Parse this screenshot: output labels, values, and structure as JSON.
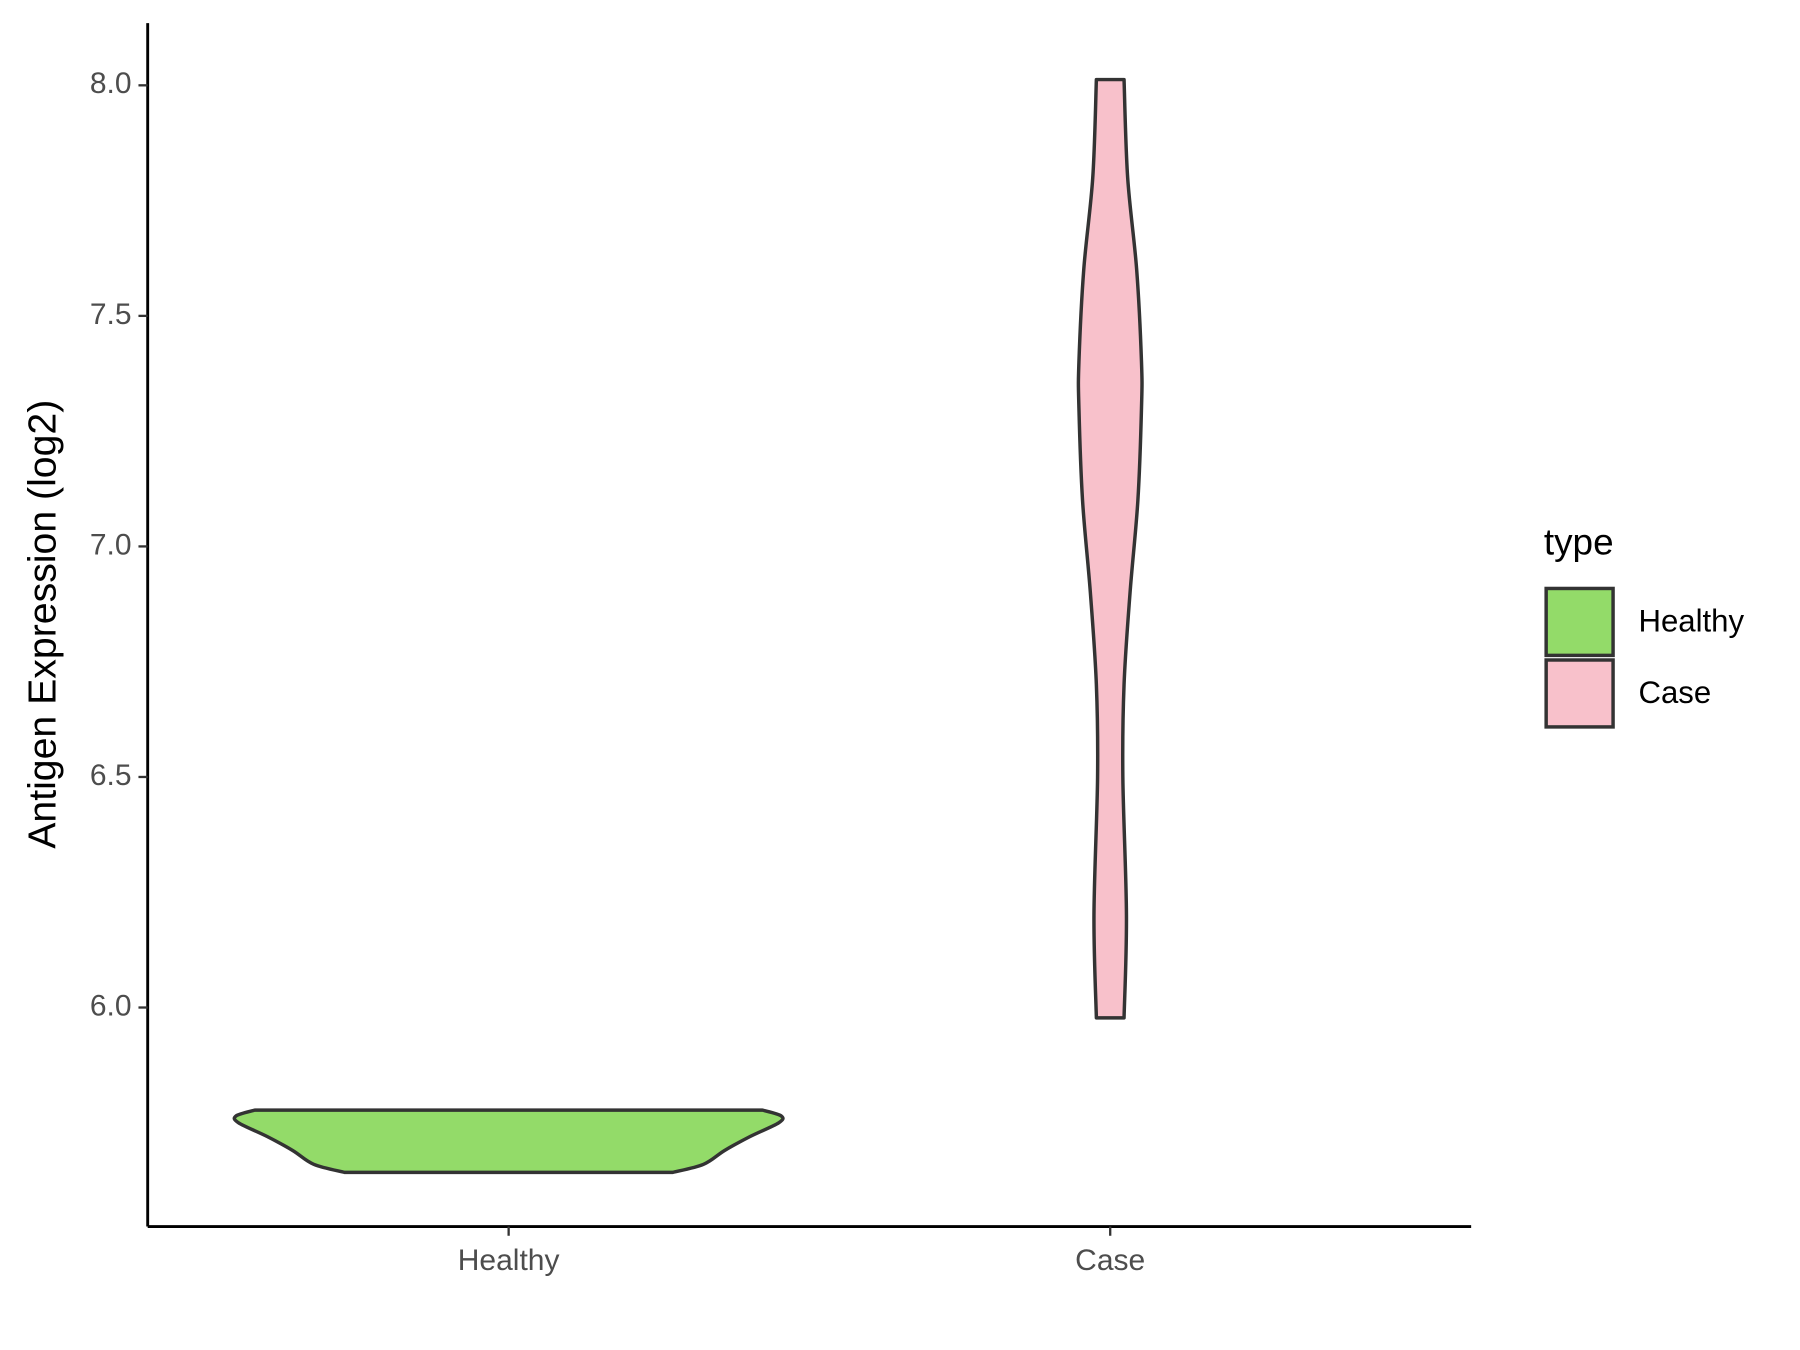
{
  "chart_data": {
    "type": "violin",
    "y_label": "Antigen Expression (log2)",
    "categories": [
      "Healthy",
      "Case"
    ],
    "ylim": [
      5.525,
      8.135
    ],
    "yticks": [
      {
        "value": 6,
        "label": "6.0"
      },
      {
        "value": 6.5,
        "label": "6.5"
      },
      {
        "value": 7,
        "label": "7.0"
      },
      {
        "value": 7.5,
        "label": "7.5"
      },
      {
        "value": 8,
        "label": "8.0"
      }
    ],
    "legend_title": "type",
    "legend_position": "right",
    "grid": false,
    "series": [
      {
        "name": "Healthy",
        "color": "#93db69",
        "y": [
          5.6425,
          5.66,
          5.69,
          5.72,
          5.75,
          5.765,
          5.7775
        ],
        "half_width": [
          0.273,
          0.324,
          0.359,
          0.401,
          0.449,
          0.453,
          0.422
        ]
      },
      {
        "name": "Case",
        "color": "#f8c1cb",
        "y": [
          5.9775,
          6.2,
          6.5,
          6.7,
          6.9,
          7.1,
          7.3,
          7.4,
          7.6,
          7.8,
          8.0125
        ],
        "half_width": [
          0.023,
          0.027,
          0.021,
          0.023,
          0.033,
          0.046,
          0.052,
          0.052,
          0.044,
          0.029,
          0.023
        ]
      }
    ]
  }
}
